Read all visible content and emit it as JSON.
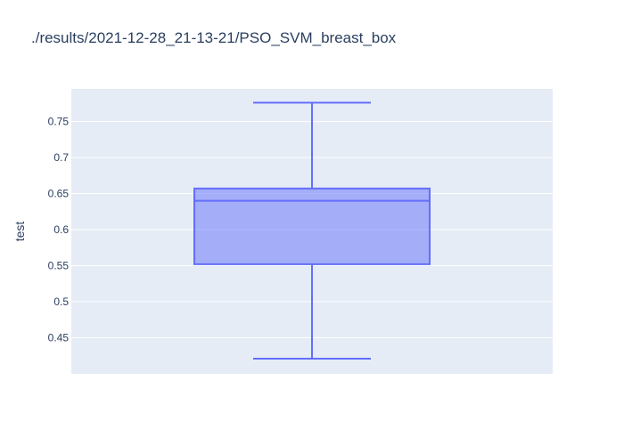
{
  "chart_data": {
    "type": "box",
    "title": "./results/2021-12-28_21-13-21/PSO_SVM_breast_box",
    "xlabel": "",
    "ylabel": "test",
    "ylim": [
      0.4,
      0.795
    ],
    "yticks": [
      0.45,
      0.5,
      0.55,
      0.6,
      0.65,
      0.7,
      0.75
    ],
    "ytick_labels": [
      "0.45",
      "0.5",
      "0.55",
      "0.6",
      "0.65",
      "0.7",
      "0.75"
    ],
    "grid": true,
    "series": [
      {
        "min": 0.421,
        "q1": 0.552,
        "median": 0.64,
        "q3": 0.657,
        "max": 0.776
      }
    ],
    "colors": {
      "box_fill": "rgba(99,110,250,0.5)",
      "box_line": "#636efa",
      "plot_bg": "#e5ecf6",
      "grid": "#ffffff",
      "text": "#2a3f5f"
    }
  }
}
